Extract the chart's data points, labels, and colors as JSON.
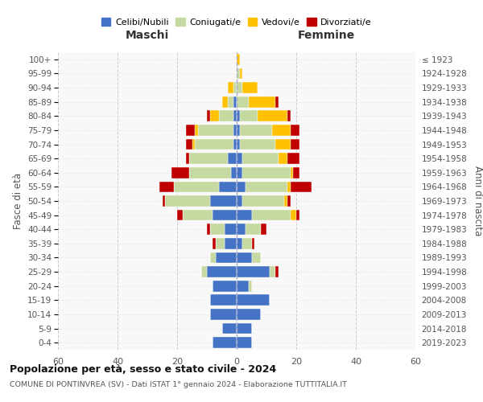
{
  "age_groups": [
    "0-4",
    "5-9",
    "10-14",
    "15-19",
    "20-24",
    "25-29",
    "30-34",
    "35-39",
    "40-44",
    "45-49",
    "50-54",
    "55-59",
    "60-64",
    "65-69",
    "70-74",
    "75-79",
    "80-84",
    "85-89",
    "90-94",
    "95-99",
    "100+"
  ],
  "birth_years": [
    "2019-2023",
    "2014-2018",
    "2009-2013",
    "2004-2008",
    "1999-2003",
    "1994-1998",
    "1989-1993",
    "1984-1988",
    "1979-1983",
    "1974-1978",
    "1969-1973",
    "1964-1968",
    "1959-1963",
    "1954-1958",
    "1949-1953",
    "1944-1948",
    "1939-1943",
    "1934-1938",
    "1929-1933",
    "1924-1928",
    "≤ 1923"
  ],
  "males": {
    "celibi": [
      8,
      5,
      9,
      9,
      8,
      10,
      7,
      4,
      4,
      8,
      9,
      6,
      2,
      3,
      1,
      1,
      1,
      1,
      0,
      0,
      0
    ],
    "coniugati": [
      0,
      0,
      0,
      0,
      0,
      2,
      2,
      3,
      5,
      10,
      15,
      15,
      14,
      13,
      13,
      12,
      5,
      2,
      1,
      0,
      0
    ],
    "vedovi": [
      0,
      0,
      0,
      0,
      0,
      0,
      0,
      0,
      0,
      0,
      0,
      0,
      0,
      0,
      1,
      1,
      3,
      2,
      2,
      0,
      0
    ],
    "divorziati": [
      0,
      0,
      0,
      0,
      0,
      0,
      0,
      1,
      1,
      2,
      1,
      5,
      6,
      1,
      2,
      3,
      1,
      0,
      0,
      0,
      0
    ]
  },
  "females": {
    "nubili": [
      5,
      5,
      8,
      11,
      4,
      11,
      5,
      2,
      3,
      5,
      2,
      3,
      2,
      2,
      1,
      1,
      1,
      0,
      0,
      0,
      0
    ],
    "coniugate": [
      0,
      0,
      0,
      0,
      1,
      2,
      3,
      3,
      5,
      13,
      14,
      14,
      16,
      12,
      12,
      11,
      6,
      4,
      2,
      1,
      0
    ],
    "vedove": [
      0,
      0,
      0,
      0,
      0,
      0,
      0,
      0,
      0,
      2,
      1,
      1,
      1,
      3,
      5,
      6,
      10,
      9,
      5,
      1,
      1
    ],
    "divorziate": [
      0,
      0,
      0,
      0,
      0,
      1,
      0,
      1,
      2,
      1,
      1,
      7,
      2,
      4,
      3,
      3,
      1,
      1,
      0,
      0,
      0
    ]
  },
  "colors": {
    "celibi": "#4472c4",
    "coniugati": "#c5d9a0",
    "vedovi": "#ffc000",
    "divorziati": "#c00000"
  },
  "xlim": 60,
  "title1": "Popolazione per età, sesso e stato civile - 2024",
  "title2": "COMUNE DI PONTINVREA (SV) - Dati ISTAT 1° gennaio 2024 - Elaborazione TUTTITALIA.IT",
  "legend_labels": [
    "Celibi/Nubili",
    "Coniugati/e",
    "Vedovi/e",
    "Divorziati/e"
  ],
  "ylabel_left": "Fasce di età",
  "ylabel_right": "Anni di nascita",
  "maschi_label": "Maschi",
  "femmine_label": "Femmine"
}
